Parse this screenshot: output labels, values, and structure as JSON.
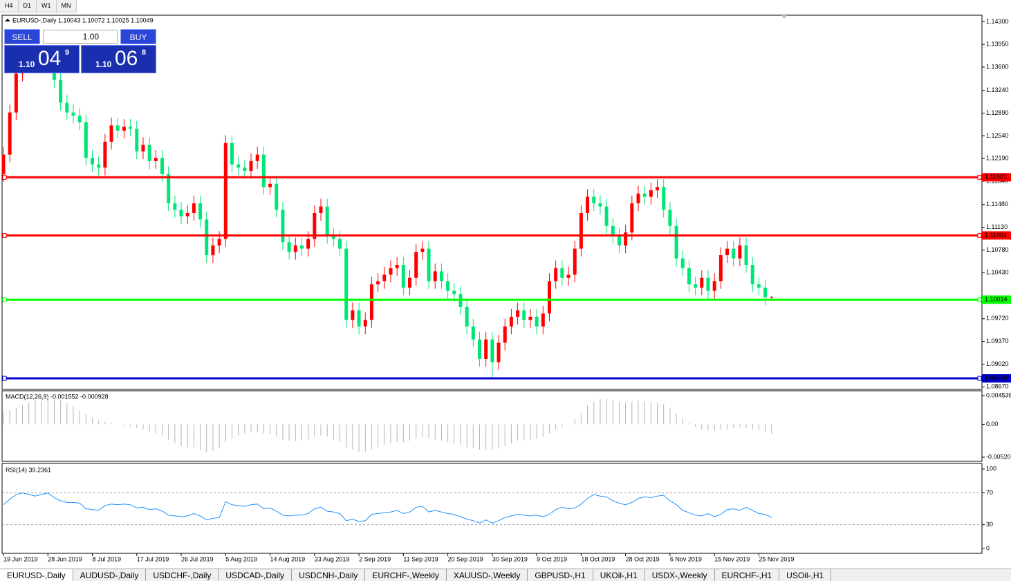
{
  "toolbar": [
    "H4",
    "D1",
    "W1",
    "MN"
  ],
  "trade_panel": {
    "sell": "SELL",
    "buy": "BUY",
    "lots": "1.00",
    "bid_big": "1.10",
    "bid_pips": "04",
    "bid_point": "9",
    "ask_big": "1.10",
    "ask_pips": "06",
    "ask_point": "8"
  },
  "chart_data": [
    {
      "type": "candlestick",
      "title": "EURUSD-,Daily  1.10043 1.10072 1.10025 1.10049",
      "up_color": "#ff0000",
      "down_color": "#00e676",
      "categories": [
        "19 Jun 2019",
        null,
        null,
        null,
        null,
        null,
        null,
        "28 Jun 2019",
        null,
        null,
        null,
        null,
        null,
        null,
        "8 Jul 2019",
        null,
        null,
        null,
        null,
        null,
        null,
        "17 Jul 2019",
        null,
        null,
        null,
        null,
        null,
        null,
        "26 Jul 2019",
        null,
        null,
        null,
        null,
        null,
        null,
        "5 Aug 2019",
        null,
        null,
        null,
        null,
        null,
        null,
        "14 Aug 2019",
        null,
        null,
        null,
        null,
        null,
        null,
        "23 Aug 2019",
        null,
        null,
        null,
        null,
        null,
        null,
        "2 Sep 2019",
        null,
        null,
        null,
        null,
        null,
        null,
        "11 Sep 2019",
        null,
        null,
        null,
        null,
        null,
        null,
        "20 Sep 2019",
        null,
        null,
        null,
        null,
        null,
        null,
        "30 Sep 2019",
        null,
        null,
        null,
        null,
        null,
        null,
        "9 Oct 2019",
        null,
        null,
        null,
        null,
        null,
        null,
        "18 Oct 2019",
        null,
        null,
        null,
        null,
        null,
        null,
        "28 Oct 2019",
        null,
        null,
        null,
        null,
        null,
        null,
        "6 Nov 2019",
        null,
        null,
        null,
        null,
        null,
        null,
        "15 Nov 2019",
        null,
        null,
        null,
        null,
        null,
        null,
        "25 Nov 2019",
        null,
        null
      ],
      "open": [
        1.1195,
        1.1225,
        1.129,
        1.135,
        1.137,
        1.138,
        1.1365,
        1.1372,
        1.138,
        1.134,
        1.1305,
        1.129,
        1.1285,
        1.1275,
        1.122,
        1.121,
        1.1205,
        1.1245,
        1.127,
        1.1262,
        1.1268,
        1.1265,
        1.123,
        1.124,
        1.1215,
        1.122,
        1.1195,
        1.115,
        1.114,
        1.113,
        1.1135,
        1.115,
        1.1125,
        1.107,
        1.1085,
        1.1095,
        1.1243,
        1.121,
        1.1205,
        1.12,
        1.1215,
        1.1225,
        1.1175,
        1.118,
        1.114,
        1.109,
        1.1075,
        1.1085,
        1.108,
        1.1095,
        1.1135,
        1.1145,
        1.11,
        1.1095,
        1.108,
        1.097,
        1.0985,
        1.096,
        1.097,
        1.1025,
        1.103,
        1.104,
        1.105,
        1.1055,
        1.102,
        1.1035,
        1.1075,
        1.108,
        1.103,
        1.1045,
        1.103,
        1.1015,
        1.101,
        1.099,
        1.096,
        1.094,
        1.091,
        1.094,
        1.0905,
        1.0935,
        1.096,
        1.0975,
        1.0985,
        1.097,
        1.0975,
        1.096,
        1.098,
        1.103,
        1.105,
        1.1035,
        1.104,
        1.108,
        1.1135,
        1.116,
        1.115,
        1.1145,
        1.1115,
        1.11,
        1.1085,
        1.1105,
        1.115,
        1.1165,
        1.116,
        1.117,
        1.1175,
        1.114,
        1.1115,
        1.1065,
        1.105,
        1.1025,
        1.102,
        1.1035,
        1.1015,
        1.103,
        1.107,
        1.108,
        1.1065,
        1.1085,
        1.1055,
        1.1025,
        1.102,
        1.1005
      ],
      "high": [
        1.1237,
        1.1302,
        1.1362,
        1.1382,
        1.1392,
        1.1392,
        1.1384,
        1.1392,
        1.1392,
        1.1352,
        1.1317,
        1.1302,
        1.1297,
        1.1287,
        1.1232,
        1.1222,
        1.1257,
        1.1282,
        1.1282,
        1.128,
        1.128,
        1.1277,
        1.1252,
        1.1252,
        1.1232,
        1.1232,
        1.1207,
        1.1162,
        1.1152,
        1.1147,
        1.1162,
        1.1162,
        1.1137,
        1.1097,
        1.1107,
        1.1255,
        1.1255,
        1.1222,
        1.1217,
        1.1227,
        1.1237,
        1.1237,
        1.1192,
        1.1192,
        1.1152,
        1.1102,
        1.1097,
        1.1097,
        1.1107,
        1.1147,
        1.1157,
        1.1157,
        1.1112,
        1.1107,
        1.1092,
        1.0997,
        1.0997,
        1.0982,
        1.1037,
        1.1042,
        1.1052,
        1.1062,
        1.1067,
        1.1067,
        1.1047,
        1.1087,
        1.1092,
        1.1092,
        1.1057,
        1.1057,
        1.1042,
        1.1027,
        1.1022,
        1.1002,
        1.0972,
        1.0952,
        1.0952,
        1.0952,
        1.0947,
        1.0972,
        1.0987,
        1.0997,
        1.0997,
        1.0987,
        1.0987,
        1.0992,
        1.1042,
        1.1062,
        1.1062,
        1.1052,
        1.1092,
        1.1147,
        1.1172,
        1.1172,
        1.1162,
        1.1157,
        1.1127,
        1.1112,
        1.1117,
        1.1162,
        1.1177,
        1.1177,
        1.1182,
        1.1187,
        1.1187,
        1.1152,
        1.1127,
        1.1077,
        1.1062,
        1.1037,
        1.1047,
        1.1047,
        1.1042,
        1.1082,
        1.1092,
        1.1092,
        1.1097,
        1.1097,
        1.1067,
        1.1037,
        1.1032,
        1.1007
      ],
      "low": [
        1.1183,
        1.1213,
        1.1278,
        1.1338,
        1.1358,
        1.1353,
        1.1353,
        1.136,
        1.1328,
        1.1293,
        1.1278,
        1.1273,
        1.1263,
        1.1208,
        1.1198,
        1.1193,
        1.1193,
        1.1233,
        1.125,
        1.125,
        1.1253,
        1.1218,
        1.1218,
        1.1203,
        1.1203,
        1.1183,
        1.1138,
        1.1128,
        1.1118,
        1.1118,
        1.1123,
        1.1113,
        1.1058,
        1.1058,
        1.1073,
        1.1083,
        1.1198,
        1.1193,
        1.1188,
        1.1188,
        1.1203,
        1.1163,
        1.1163,
        1.1128,
        1.1078,
        1.1063,
        1.1063,
        1.1068,
        1.1068,
        1.1083,
        1.1123,
        1.1088,
        1.1083,
        1.1068,
        1.0958,
        1.0958,
        1.0948,
        1.0948,
        1.0958,
        1.1013,
        1.1018,
        1.1028,
        1.1038,
        1.1008,
        1.1008,
        1.1023,
        1.1063,
        1.1018,
        1.1018,
        1.1018,
        1.1003,
        1.0998,
        1.0978,
        1.0948,
        1.0928,
        1.0898,
        1.0898,
        1.0879,
        1.0893,
        1.0923,
        1.0948,
        1.0963,
        1.0958,
        1.0958,
        1.0948,
        1.0948,
        1.0968,
        1.1018,
        1.1023,
        1.1023,
        1.1028,
        1.1068,
        1.1123,
        1.1138,
        1.1133,
        1.1103,
        1.1088,
        1.1073,
        1.1073,
        1.1093,
        1.1138,
        1.1148,
        1.1148,
        1.1158,
        1.1128,
        1.1103,
        1.1053,
        1.1038,
        1.1013,
        1.1008,
        1.1008,
        1.1003,
        1.1003,
        1.1018,
        1.1058,
        1.1053,
        1.1053,
        1.1043,
        1.1013,
        1.1008,
        1.0993,
        1.1003
      ],
      "close": [
        1.1225,
        1.129,
        1.135,
        1.137,
        1.138,
        1.1365,
        1.1372,
        1.138,
        1.134,
        1.1305,
        1.129,
        1.1285,
        1.1275,
        1.122,
        1.121,
        1.1205,
        1.1245,
        1.127,
        1.1262,
        1.1268,
        1.1265,
        1.123,
        1.124,
        1.1215,
        1.122,
        1.1195,
        1.115,
        1.114,
        1.113,
        1.1135,
        1.115,
        1.1125,
        1.107,
        1.1085,
        1.1095,
        1.1243,
        1.121,
        1.1205,
        1.12,
        1.1215,
        1.1225,
        1.1175,
        1.118,
        1.114,
        1.109,
        1.1075,
        1.1085,
        1.108,
        1.1095,
        1.1135,
        1.1145,
        1.11,
        1.1095,
        1.108,
        1.097,
        1.0985,
        1.096,
        1.097,
        1.1025,
        1.103,
        1.104,
        1.105,
        1.1055,
        1.102,
        1.1035,
        1.1075,
        1.108,
        1.103,
        1.1045,
        1.103,
        1.1015,
        1.101,
        1.099,
        1.096,
        1.094,
        1.091,
        1.094,
        1.0905,
        1.0935,
        1.096,
        1.0975,
        1.0985,
        1.097,
        1.0975,
        1.096,
        1.098,
        1.103,
        1.105,
        1.1035,
        1.104,
        1.108,
        1.1135,
        1.116,
        1.115,
        1.1145,
        1.1115,
        1.11,
        1.1085,
        1.1105,
        1.115,
        1.1165,
        1.116,
        1.117,
        1.1175,
        1.114,
        1.1115,
        1.1065,
        1.105,
        1.1025,
        1.102,
        1.1035,
        1.1015,
        1.103,
        1.107,
        1.108,
        1.1065,
        1.1085,
        1.1055,
        1.1025,
        1.102,
        1.1005,
        1.1005
      ],
      "ylim": [
        1.0863,
        1.144
      ],
      "yticks": [
        {
          "value": 1.143,
          "label": "1.14300"
        },
        {
          "value": 1.1395,
          "label": "1.13950"
        },
        {
          "value": 1.136,
          "label": "1.13600"
        },
        {
          "value": 1.1324,
          "label": "1.13240"
        },
        {
          "value": 1.1289,
          "label": "1.12890"
        },
        {
          "value": 1.1254,
          "label": "1.12540"
        },
        {
          "value": 1.1219,
          "label": "1.12190"
        },
        {
          "value": 1.1184,
          "label": "1.11840"
        },
        {
          "value": 1.1148,
          "label": "1.11480"
        },
        {
          "value": 1.1113,
          "label": "1.11130"
        },
        {
          "value": 1.1078,
          "label": "1.10780"
        },
        {
          "value": 1.1043,
          "label": "1.10430"
        },
        {
          "value": 1.0972,
          "label": "1.09720"
        },
        {
          "value": 1.0937,
          "label": "1.09370"
        },
        {
          "value": 1.0902,
          "label": "1.09020"
        },
        {
          "value": 1.0867,
          "label": "1.08670"
        }
      ],
      "levels": [
        {
          "value": 1.11901,
          "label": "1.11901",
          "color": "#ff0000"
        },
        {
          "value": 1.11004,
          "label": "1.11004",
          "color": "#ff0000"
        },
        {
          "value": 1.10014,
          "label": "1.10014",
          "color": "#00ff00"
        },
        {
          "value": 1.088,
          "label": "1.08800",
          "color": "#0000cd"
        }
      ]
    },
    {
      "type": "bar",
      "title": "MACD(12,26,9) -0.001552 -0.000928",
      "color": "#b4b4b4",
      "values": [
        0.002,
        0.0022,
        0.0026,
        0.003,
        0.0034,
        0.0038,
        0.0041,
        0.0043,
        0.0042,
        0.0038,
        0.0034,
        0.0028,
        0.0022,
        0.0016,
        0.001,
        0.0006,
        0.0004,
        0.0002,
        0,
        -0.0002,
        -0.0004,
        -0.0006,
        -0.0008,
        -0.0011,
        -0.0014,
        -0.0018,
        -0.0024,
        -0.003,
        -0.0034,
        -0.0036,
        -0.0036,
        -0.004,
        -0.0044,
        -0.0042,
        -0.0038,
        -0.0028,
        -0.0022,
        -0.0018,
        -0.0015,
        -0.0013,
        -0.0012,
        -0.0014,
        -0.0016,
        -0.002,
        -0.0024,
        -0.0026,
        -0.0027,
        -0.0026,
        -0.0024,
        -0.002,
        -0.0018,
        -0.002,
        -0.0024,
        -0.0028,
        -0.0036,
        -0.004,
        -0.0044,
        -0.0044,
        -0.004,
        -0.0036,
        -0.0032,
        -0.003,
        -0.0028,
        -0.0028,
        -0.0026,
        -0.0022,
        -0.002,
        -0.0022,
        -0.0024,
        -0.0026,
        -0.0028,
        -0.003,
        -0.0032,
        -0.0036,
        -0.0038,
        -0.004,
        -0.004,
        -0.004,
        -0.0038,
        -0.0034,
        -0.003,
        -0.0026,
        -0.0025,
        -0.0024,
        -0.0022,
        -0.002,
        -0.0014,
        -0.0008,
        -0.0004,
        0,
        0.0008,
        0.0018,
        0.003,
        0.0036,
        0.004,
        0.004,
        0.0038,
        0.0035,
        0.0034,
        0.0036,
        0.0038,
        0.0036,
        0.0036,
        0.0034,
        0.0032,
        0.0026,
        0.0018,
        0.001,
        0.0002,
        -0.0004,
        -0.0008,
        -0.001,
        -0.001,
        -0.0009,
        -0.0008,
        -0.0006,
        -0.0004,
        -0.0006,
        -0.0008,
        -0.001,
        -0.0012,
        -0.0015
      ],
      "ylim": [
        -0.00586,
        0.0053
      ],
      "yticks": [
        0.004536,
        {
          "value": 0,
          "label": "0.00"
        },
        -0.005205
      ]
    },
    {
      "type": "line",
      "title": "RSI(14) 39.2361",
      "color": "#1e90ff",
      "values": [
        55,
        62,
        68,
        70,
        68,
        66,
        68,
        70,
        64,
        60,
        58,
        58,
        57,
        50,
        49,
        48,
        54,
        56,
        55,
        56,
        55,
        51,
        52,
        49,
        50,
        47,
        42,
        41,
        40,
        41,
        44,
        41,
        36,
        38,
        39,
        59,
        55,
        54,
        53,
        55,
        56,
        50,
        51,
        47,
        42,
        41,
        42,
        42,
        44,
        50,
        52,
        47,
        46,
        44,
        35,
        37,
        34,
        35,
        43,
        44,
        45,
        46,
        48,
        44,
        46,
        52,
        53,
        46,
        48,
        46,
        44,
        43,
        40,
        37,
        35,
        32,
        36,
        32,
        35,
        39,
        41,
        43,
        42,
        41,
        42,
        40,
        43,
        49,
        52,
        50,
        51,
        56,
        63,
        68,
        66,
        65,
        60,
        57,
        55,
        58,
        63,
        65,
        64,
        66,
        67,
        60,
        55,
        48,
        45,
        42,
        41,
        44,
        40,
        43,
        49,
        50,
        48,
        52,
        48,
        44,
        43,
        39
      ],
      "ylim": [
        -6,
        107
      ],
      "yticks": [
        100,
        70,
        30,
        0
      ],
      "levels": [
        70,
        30
      ]
    }
  ],
  "tabs": [
    "EURUSD-,Daily",
    "AUDUSD-,Daily",
    "USDCHF-,Daily",
    "USDCAD-,Daily",
    "USDCNH-,Daily",
    "EURCHF-,Weekly",
    "XAUUSD-,Weekly",
    "GBPUSD-,H1",
    "UKOil-,H1",
    "USDX-,Weekly",
    "EURCHF-,H1",
    "USOil-,H1"
  ]
}
